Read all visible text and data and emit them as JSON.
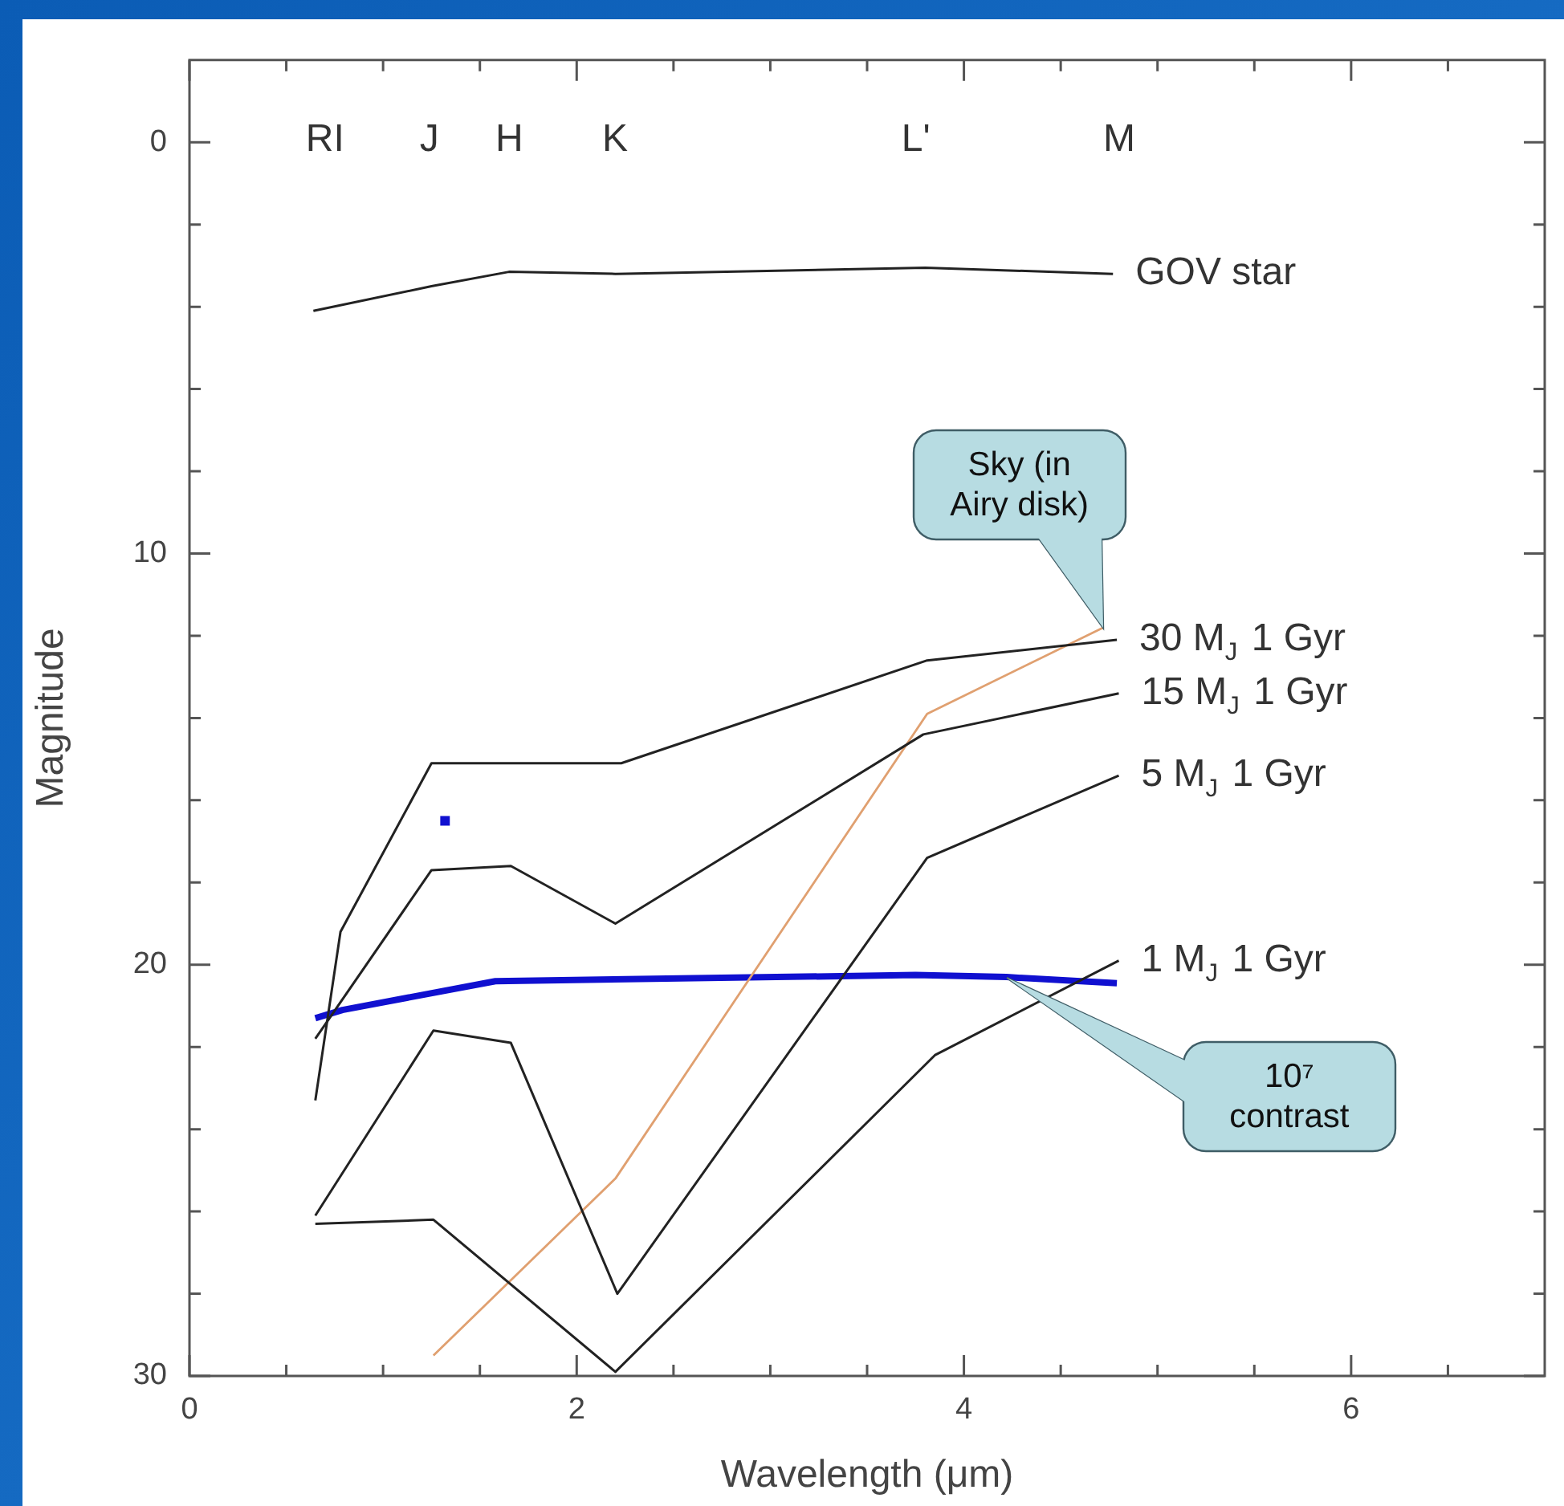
{
  "chart_data": {
    "type": "line",
    "xlabel": "Wavelength (μm)",
    "ylabel": "Magnitude",
    "xlim": [
      0,
      7
    ],
    "ylim": [
      30,
      -2
    ],
    "xticks": [
      0,
      {
        "value": 0.5,
        "label": null
      },
      {
        "value": 1,
        "label": null
      },
      {
        "value": 1.5,
        "label": null
      },
      2,
      {
        "value": 2.5,
        "label": null
      },
      {
        "value": 3,
        "label": null
      },
      {
        "value": 3.5,
        "label": null
      },
      4,
      {
        "value": 4.5,
        "label": null
      },
      {
        "value": 5,
        "label": null
      },
      {
        "value": 5.5,
        "label": null
      },
      6,
      {
        "value": 6.5,
        "label": null
      }
    ],
    "yticks": [
      0,
      {
        "value": 2,
        "label": null
      },
      {
        "value": 4,
        "label": null
      },
      {
        "value": 6,
        "label": null
      },
      {
        "value": 8,
        "label": null
      },
      10,
      {
        "value": 12,
        "label": null
      },
      {
        "value": 14,
        "label": null
      },
      {
        "value": 16,
        "label": null
      },
      {
        "value": 18,
        "label": null
      },
      20,
      {
        "value": 22,
        "label": null
      },
      {
        "value": 24,
        "label": null
      },
      {
        "value": 26,
        "label": null
      },
      {
        "value": 28,
        "label": null
      },
      30
    ],
    "marker": "none",
    "series": [
      {
        "name": "GOV star",
        "color": "#222222",
        "x": [
          0.64,
          1.25,
          1.65,
          2.2,
          3.8,
          4.77
        ],
        "values": [
          4.1,
          3.5,
          3.15,
          3.2,
          3.05,
          3.2
        ]
      },
      {
        "name": "30 M$_{J}$ 1 Gyr",
        "color": "#222222",
        "x": [
          0.65,
          0.78,
          1.25,
          2.23,
          3.81,
          4.79
        ],
        "values": [
          23.3,
          19.2,
          15.1,
          15.1,
          12.6,
          12.1
        ]
      },
      {
        "name": "15 M$_{J}$ 1 Gyr",
        "color": "#222222",
        "x": [
          0.65,
          1.25,
          1.66,
          2.2,
          3.79,
          4.8
        ],
        "values": [
          21.8,
          17.7,
          17.6,
          19.0,
          14.4,
          13.4
        ]
      },
      {
        "name": "5 M$_{J}$ 1 Gyr",
        "color": "#222222",
        "x": [
          0.65,
          1.26,
          1.66,
          2.21,
          3.81,
          4.8
        ],
        "values": [
          26.1,
          21.6,
          21.9,
          28.0,
          17.4,
          15.4
        ]
      },
      {
        "name": "1 M$_{J}$ 1 Gyr",
        "color": "#222222",
        "x": [
          0.65,
          1.26,
          2.2,
          3.85,
          4.8
        ],
        "values": [
          26.3,
          26.2,
          29.9,
          22.2,
          19.9
        ]
      },
      {
        "color": "#e0a070",
        "x": [
          1.26,
          2.2,
          3.81,
          4.72
        ],
        "values": [
          29.5,
          25.2,
          13.9,
          11.8
        ]
      },
      {
        "color": "#1010d0",
        "x": [
          0.65,
          0.79,
          1.58,
          3.75,
          4.22,
          4.79
        ],
        "values": [
          21.3,
          21.1,
          20.4,
          20.25,
          20.3,
          20.45
        ]
      },
      {
        "type": "scatter",
        "marker": "square",
        "color": "#1010d0",
        "x": [
          1.32
        ],
        "values": [
          16.5
        ]
      }
    ],
    "annotations": [
      "RI",
      "J",
      "H",
      "K",
      "L'",
      "M",
      "Sky (in Airy disk)",
      "10⁷ contrast"
    ]
  }
}
